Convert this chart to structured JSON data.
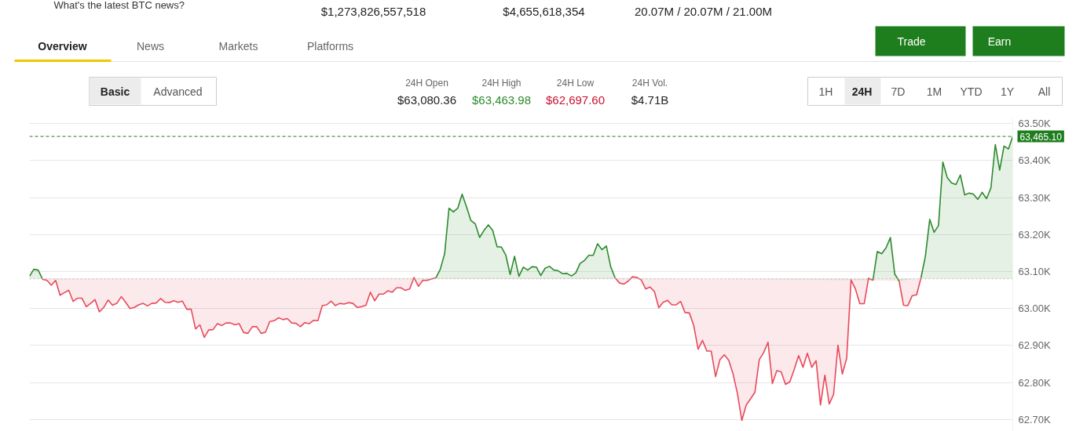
{
  "chart_data": {
    "type": "area",
    "annotations": [
      "What's the latest BTC news?",
      "$1,273,826,557,518",
      "$4,655,618,354",
      "20.07M / 20.07M / 21.00M",
      "Overview",
      "News",
      "Markets",
      "Platforms",
      "Trade",
      "Earn",
      "Basic",
      "Advanced",
      "24H Open",
      "$63,080.36",
      "24H High",
      "$63,463.98",
      "24H Low",
      "$62,697.60",
      "24H Vol.",
      "$4.71B",
      "1H",
      "24H",
      "7D",
      "1M",
      "YTD",
      "1Y",
      "All"
    ],
    "categories": [
      null,
      null,
      null,
      null,
      null,
      null,
      null,
      null,
      null,
      null,
      null,
      null,
      null,
      null,
      null,
      null,
      null,
      null,
      null,
      null,
      null,
      null,
      null,
      null,
      null,
      null,
      null,
      null,
      null,
      null,
      null,
      null,
      null,
      null,
      null,
      null,
      null,
      null,
      null,
      null,
      null,
      null,
      null,
      null,
      null,
      null,
      null,
      null,
      null,
      null,
      null,
      null,
      null,
      null,
      null,
      null,
      null,
      null,
      null,
      null,
      null,
      null,
      null,
      null,
      null,
      null,
      null,
      null,
      null,
      null,
      null,
      null,
      null,
      null,
      null,
      null,
      null,
      null,
      null,
      null,
      null,
      null,
      null,
      null,
      null,
      null,
      null,
      null,
      null,
      null,
      null,
      null,
      null,
      null,
      null,
      null,
      null,
      null,
      null,
      null,
      null,
      null,
      null,
      null,
      null,
      null,
      null,
      null,
      null,
      null,
      null,
      null,
      null,
      null,
      null,
      null,
      null,
      null,
      null,
      null,
      null,
      null,
      null,
      null,
      null,
      null,
      null,
      null,
      null,
      null,
      null,
      null,
      null,
      null,
      null,
      null,
      null,
      null,
      null,
      null,
      null,
      null,
      null,
      null,
      null,
      null,
      null,
      null,
      null,
      null,
      null,
      null,
      null,
      null,
      null,
      null,
      null,
      null,
      null,
      null,
      null,
      null,
      null,
      null,
      null,
      null,
      null,
      null,
      null,
      null,
      null,
      null,
      null,
      null,
      null,
      null,
      null,
      null,
      null,
      null,
      null,
      null,
      null,
      null,
      null,
      null,
      null,
      null,
      null,
      null,
      null,
      null,
      null,
      null,
      null,
      null,
      null,
      null,
      null,
      null,
      null,
      null,
      null,
      null,
      null,
      null,
      null,
      null,
      null,
      null,
      null,
      null,
      null,
      null,
      null,
      null,
      null,
      null,
      null,
      null,
      null,
      null,
      null,
      null,
      null,
      null
    ],
    "series": [
      {
        "color": "#2d8a2d",
        "values": [
          63087,
          63106,
          63104,
          63079,
          null,
          null,
          null,
          null,
          null,
          null,
          null,
          null,
          null,
          null,
          null,
          null,
          null,
          null,
          null,
          null,
          null,
          null,
          null,
          null,
          null,
          null,
          null,
          null,
          null,
          null,
          null,
          null,
          null,
          null,
          null,
          null,
          null,
          null,
          null,
          null,
          null,
          null,
          null,
          null,
          null,
          null,
          null,
          null,
          null,
          null,
          null,
          null,
          null,
          null,
          null,
          null,
          null,
          null,
          null,
          null,
          null,
          null,
          null,
          null,
          null,
          null,
          null,
          null,
          null,
          null,
          null,
          null,
          null,
          null,
          null,
          null,
          null,
          null,
          null,
          null,
          null,
          null,
          null,
          null,
          null,
          null,
          null,
          null,
          null,
          null,
          null,
          null,
          null,
          63083,
          63106,
          63148,
          63271,
          63261,
          63271,
          63309,
          63275,
          63238,
          63229,
          63192,
          63211,
          63226,
          63211,
          63167,
          63166,
          63144,
          63092,
          63141,
          63087,
          63112,
          63104,
          63113,
          63112,
          63089,
          63109,
          63114,
          63104,
          63102,
          63094,
          63095,
          63088,
          63096,
          63122,
          63130,
          63144,
          63144,
          63175,
          63159,
          63169,
          63113,
          63083,
          null,
          null,
          null,
          null,
          null,
          null,
          null,
          null,
          null,
          null,
          null,
          null,
          null,
          null,
          null,
          null,
          null,
          null,
          null,
          null,
          null,
          null,
          null,
          null,
          null,
          null,
          null,
          null,
          null,
          null,
          null,
          null,
          null,
          null,
          null,
          null,
          null,
          null,
          null,
          null,
          null,
          null,
          null,
          null,
          null,
          null,
          null,
          null,
          null,
          null,
          null,
          null,
          null,
          null,
          null,
          null,
          null,
          null,
          63076,
          63154,
          63148,
          63164,
          63192,
          63093,
          63074,
          null,
          null,
          null,
          null,
          63083,
          63141,
          63241,
          63206,
          63224,
          63396,
          63354,
          63339,
          63335,
          63361,
          63307,
          63312,
          63309,
          63295,
          63314,
          63297,
          63326,
          63443,
          63374,
          63439,
          63431,
          63465.1
        ]
      },
      {
        "color": "#e8495a",
        "type": "line",
        "upper": [
          null,
          null,
          null,
          63080.36,
          63080.36,
          63080.36,
          63080.36,
          63080.36,
          63080.36,
          63080.36,
          63080.36,
          63080.36,
          63080.36,
          63080.36,
          63080.36,
          63080.36,
          63080.36,
          63080.36,
          63080.36,
          63080.36,
          63080.36,
          63080.36,
          63080.36,
          63080.36,
          63080.36,
          63080.36,
          63080.36,
          63080.36,
          63080.36,
          63080.36,
          63080.36,
          63080.36,
          63080.36,
          63080.36,
          63080.36,
          63080.36,
          63080.36,
          63080.36,
          63080.36,
          63080.36,
          63080.36,
          63080.36,
          63080.36,
          63080.36,
          63080.36,
          63080.36,
          63080.36,
          63080.36,
          63080.36,
          63080.36,
          63080.36,
          63080.36,
          63080.36,
          63080.36,
          63080.36,
          63080.36,
          63080.36,
          63080.36,
          63080.36,
          63080.36,
          63080.36,
          63080.36,
          63080.36,
          63080.36,
          63080.36,
          63080.36,
          63080.36,
          63080.36,
          63080.36,
          63080.36,
          63080.36,
          63080.36,
          63080.36,
          63080.36,
          63080.36,
          63080.36,
          63080.36,
          63080.36,
          63080.36,
          63080.36,
          63080.36,
          63080.36,
          63080.36,
          63080.36,
          63080.36,
          63080.36,
          63080.36,
          63080.36,
          63080.36,
          63080.36,
          63080.36,
          63080.36,
          63080.36,
          63080.36,
          null,
          null,
          null,
          null,
          null,
          null,
          null,
          null,
          null,
          null,
          null,
          null,
          null,
          null,
          null,
          null,
          null,
          null,
          null,
          null,
          null,
          null,
          null,
          null,
          null,
          null,
          null,
          null,
          null,
          null,
          null,
          null,
          null,
          null,
          null,
          null,
          null,
          null,
          null,
          null,
          63080.36,
          63080.36,
          63080.36,
          63080.36,
          63080.36,
          63080.36,
          63080.36,
          63080.36,
          63080.36,
          63080.36,
          63080.36,
          63080.36,
          63080.36,
          63080.36,
          63080.36,
          63080.36,
          63080.36,
          63080.36,
          63080.36,
          63080.36,
          63080.36,
          63080.36,
          63080.36,
          63080.36,
          63080.36,
          63080.36,
          63080.36,
          63080.36,
          63080.36,
          63080.36,
          63080.36,
          63080.36,
          63080.36,
          63080.36,
          63080.36,
          63080.36,
          63080.36,
          63080.36,
          63080.36,
          63080.36,
          63080.36,
          63080.36,
          63080.36,
          63080.36,
          63080.36,
          63080.36,
          63080.36,
          63080.36,
          63080.36,
          63080.36,
          63080.36,
          63080.36,
          63080.36,
          63080.36,
          63080.36,
          63080.36,
          63080.36,
          63080.36,
          63080.36,
          63080.36,
          null,
          null,
          null,
          null,
          null,
          63080.36,
          63080.36,
          63080.36,
          63080.36,
          63080.36,
          63080.36,
          null,
          null,
          null,
          null,
          null,
          null,
          null,
          null,
          null,
          null,
          null,
          null,
          null,
          null,
          null,
          null,
          null,
          null,
          null,
          null,
          null
        ],
        "lower": [
          null,
          null,
          null,
          63079,
          63076,
          63063,
          63076,
          63036,
          63043,
          63049,
          63019,
          63028,
          63028,
          63005,
          63014,
          63024,
          62991,
          63003,
          63023,
          63009,
          63014,
          63032,
          63017,
          63000,
          63003,
          63010,
          63014,
          63007,
          63014,
          63015,
          63027,
          63017,
          63016,
          63021,
          63017,
          63020,
          62998,
          62998,
          62945,
          62956,
          62922,
          62942,
          62943,
          62959,
          62954,
          62961,
          62961,
          62956,
          62959,
          62935,
          62933,
          62951,
          62951,
          62933,
          62936,
          62965,
          62967,
          62975,
          62970,
          62973,
          62961,
          62960,
          62951,
          62962,
          62959,
          62968,
          62967,
          63008,
          63010,
          63020,
          63008,
          63014,
          63012,
          63016,
          63014,
          63003,
          63005,
          63009,
          63044,
          63021,
          63039,
          63039,
          63048,
          63044,
          63056,
          63056,
          63049,
          63053,
          63084,
          63060,
          63076,
          63076,
          63080,
          63083,
          null,
          null,
          null,
          null,
          null,
          null,
          null,
          null,
          null,
          null,
          null,
          null,
          null,
          null,
          null,
          null,
          null,
          null,
          null,
          null,
          null,
          null,
          null,
          null,
          null,
          null,
          null,
          null,
          null,
          null,
          null,
          null,
          null,
          null,
          null,
          null,
          null,
          null,
          null,
          null,
          63083,
          63069,
          63066,
          63074,
          63086,
          63084,
          63077,
          63053,
          63058,
          63046,
          63002,
          63017,
          63022,
          63010,
          63010,
          63019,
          62989,
          62988,
          62954,
          62890,
          62914,
          62885,
          62885,
          62816,
          62862,
          62875,
          62860,
          62823,
          62770,
          62697.6,
          62739,
          62756,
          62774,
          62862,
          62881,
          62909,
          62797,
          62832,
          62829,
          62795,
          62802,
          62836,
          62873,
          62841,
          62879,
          62841,
          62859,
          62739,
          62820,
          62742,
          62768,
          62901,
          62823,
          62866,
          63077,
          63053,
          63013,
          63013,
          63082,
          63076,
          null,
          null,
          null,
          null,
          null,
          63074,
          63009,
          63008,
          63035,
          63037,
          63083,
          null,
          null,
          null,
          null,
          null,
          null,
          null,
          null,
          null,
          null,
          null,
          null,
          null,
          null,
          null,
          null,
          null,
          null,
          null,
          null,
          null
        ],
        "values": [
          null,
          null,
          null,
          63079,
          63076,
          63063,
          63076,
          63036,
          63043,
          63049,
          63019,
          63028,
          63028,
          63005,
          63014,
          63024,
          62991,
          63003,
          63023,
          63009,
          63014,
          63032,
          63017,
          63000,
          63003,
          63010,
          63014,
          63007,
          63014,
          63015,
          63027,
          63017,
          63016,
          63021,
          63017,
          63020,
          62998,
          62998,
          62945,
          62956,
          62922,
          62942,
          62943,
          62959,
          62954,
          62961,
          62961,
          62956,
          62959,
          62935,
          62933,
          62951,
          62951,
          62933,
          62936,
          62965,
          62967,
          62975,
          62970,
          62973,
          62961,
          62960,
          62951,
          62962,
          62959,
          62968,
          62967,
          63008,
          63010,
          63020,
          63008,
          63014,
          63012,
          63016,
          63014,
          63003,
          63005,
          63009,
          63044,
          63021,
          63039,
          63039,
          63048,
          63044,
          63056,
          63056,
          63049,
          63053,
          63084,
          63060,
          63076,
          63076,
          63080,
          63083,
          null,
          null,
          null,
          null,
          null,
          null,
          null,
          null,
          null,
          null,
          null,
          null,
          null,
          null,
          null,
          null,
          null,
          null,
          null,
          null,
          null,
          null,
          null,
          null,
          null,
          null,
          null,
          null,
          null,
          null,
          null,
          null,
          null,
          null,
          null,
          null,
          null,
          null,
          null,
          null,
          63083,
          63069,
          63066,
          63074,
          63086,
          63084,
          63077,
          63053,
          63058,
          63046,
          63002,
          63017,
          63022,
          63010,
          63010,
          63019,
          62989,
          62988,
          62954,
          62890,
          62914,
          62885,
          62885,
          62816,
          62862,
          62875,
          62860,
          62823,
          62770,
          62697.6,
          62739,
          62756,
          62774,
          62862,
          62881,
          62909,
          62797,
          62832,
          62829,
          62795,
          62802,
          62836,
          62873,
          62841,
          62879,
          62841,
          62859,
          62739,
          62820,
          62742,
          62768,
          62901,
          62823,
          62866,
          63077,
          63053,
          63013,
          63013,
          63082,
          63076,
          null,
          null,
          null,
          null,
          null,
          63074,
          63009,
          63008,
          63035,
          63037,
          63083,
          null,
          null,
          null,
          null,
          null,
          null,
          null,
          null,
          null,
          null,
          null,
          null,
          null,
          null,
          null,
          null,
          null,
          null,
          null,
          null,
          null
        ]
      }
    ],
    "ylim": [
      62668,
      63515
    ],
    "yticks": [
      {
        "value": 62700,
        "label": "62.70K"
      },
      {
        "value": 62800,
        "label": "62.80K"
      },
      {
        "value": 62900,
        "label": "62.90K"
      },
      {
        "value": 63000,
        "label": "63.00K"
      },
      {
        "value": 63100,
        "label": "63.10K"
      },
      {
        "value": 63200,
        "label": "63.20K"
      },
      {
        "value": 63300,
        "label": "63.30K"
      },
      {
        "value": 63400,
        "label": "63.40K"
      },
      {
        "value": 63500,
        "label": "63.50K"
      }
    ],
    "ref_lines": [
      {
        "axis": "y",
        "value": 63080.36,
        "color": "#bbbbbb",
        "line_style": "dotted"
      },
      {
        "axis": "y",
        "value": 63465.1,
        "label": "63,465.10",
        "color": "#1e7e1e",
        "line_style": "dashed"
      }
    ],
    "grid": "y",
    "tick_labels": "y"
  }
}
